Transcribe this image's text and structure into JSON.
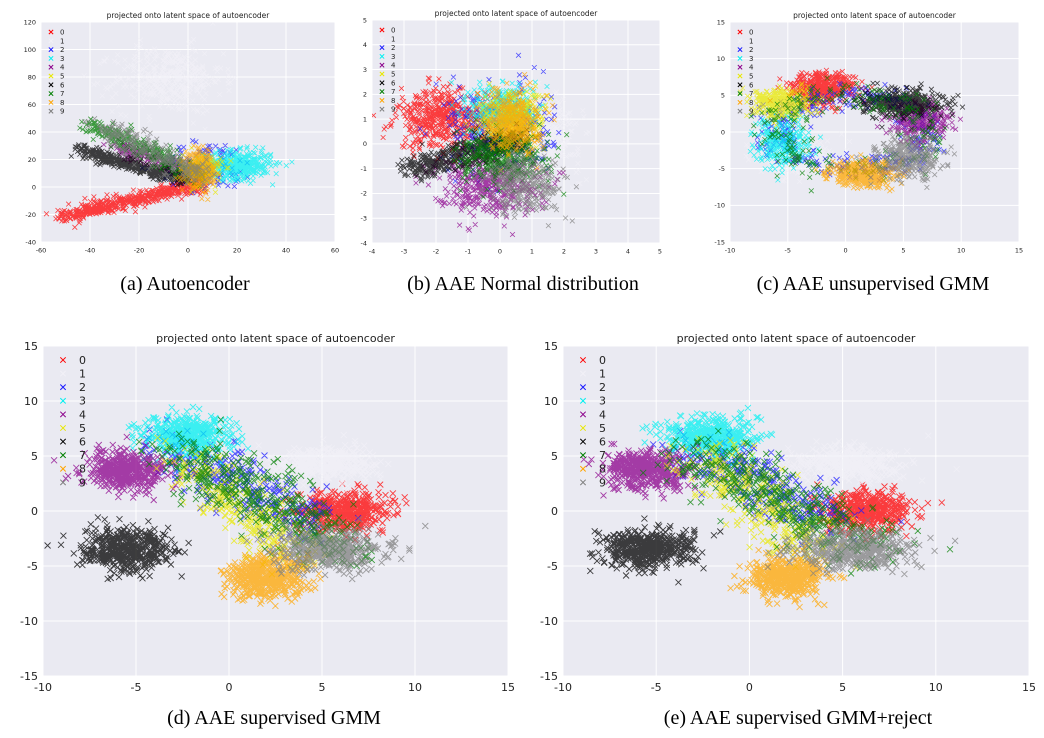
{
  "figure": {
    "legend_labels": [
      "0",
      "1",
      "2",
      "3",
      "4",
      "5",
      "6",
      "7",
      "8",
      "9"
    ],
    "class_colors": [
      "#ff0000",
      "#f2f0f7",
      "#1a1aff",
      "#00f0f0",
      "#8b008b",
      "#e8e800",
      "#000000",
      "#007f00",
      "#ffa500",
      "#7f7f7f"
    ],
    "background_color": "#eaeaf2"
  },
  "chart_data": [
    {
      "type": "scatter",
      "id": "a",
      "title": "projected onto latent space of autoencoder",
      "caption": "(a) Autoencoder",
      "xlim": [
        -60,
        60
      ],
      "ylim": [
        -40,
        120
      ],
      "xticks": [
        -60,
        -40,
        -20,
        0,
        20,
        40,
        60
      ],
      "yticks": [
        -40,
        -20,
        0,
        20,
        40,
        60,
        80,
        100,
        120
      ],
      "grid": true,
      "legend_position": "top-left",
      "series": [
        {
          "name": "0",
          "cluster": {
            "kind": "line",
            "from": [
              -52,
              -22
            ],
            "to": [
              5,
              2
            ],
            "spread": 2.5,
            "n": 520
          }
        },
        {
          "name": "1",
          "cluster": {
            "kind": "blob",
            "center": [
              -8,
              78
            ],
            "spread": [
              11,
              12
            ],
            "n": 380
          }
        },
        {
          "name": "2",
          "cluster": {
            "kind": "blob",
            "center": [
              8,
              15
            ],
            "spread": [
              10,
              9
            ],
            "n": 120
          }
        },
        {
          "name": "3",
          "cluster": {
            "kind": "blob",
            "center": [
              20,
              16
            ],
            "spread": [
              7,
              5
            ],
            "n": 420
          }
        },
        {
          "name": "4",
          "cluster": {
            "kind": "line",
            "from": [
              -30,
              30
            ],
            "to": [
              5,
              8
            ],
            "spread": 2.5,
            "n": 200
          }
        },
        {
          "name": "5",
          "cluster": {
            "kind": "blob",
            "center": [
              6,
              12
            ],
            "spread": [
              4,
              6
            ],
            "n": 140
          }
        },
        {
          "name": "6",
          "cluster": {
            "kind": "line",
            "from": [
              -45,
              27
            ],
            "to": [
              0,
              5
            ],
            "spread": 2.2,
            "n": 460
          }
        },
        {
          "name": "7",
          "cluster": {
            "kind": "line",
            "from": [
              -40,
              46
            ],
            "to": [
              5,
              8
            ],
            "spread": 3,
            "n": 320
          }
        },
        {
          "name": "8",
          "cluster": {
            "kind": "blob",
            "center": [
              5,
              12
            ],
            "spread": [
              3,
              6
            ],
            "n": 380
          }
        },
        {
          "name": "9",
          "cluster": {
            "kind": "line",
            "from": [
              -35,
              44
            ],
            "to": [
              5,
              8
            ],
            "spread": 4,
            "n": 260
          }
        }
      ]
    },
    {
      "type": "scatter",
      "id": "b",
      "title": "projected onto latent space of autoencoder",
      "caption": "(b) AAE Normal distribution",
      "xlim": [
        -4,
        5
      ],
      "ylim": [
        -4,
        5
      ],
      "xticks": [
        -4,
        -3,
        -2,
        -1,
        0,
        1,
        2,
        3,
        4,
        5
      ],
      "yticks": [
        -4,
        -3,
        -2,
        -1,
        0,
        1,
        2,
        3,
        4,
        5
      ],
      "grid": true,
      "legend_position": "top-left",
      "series": [
        {
          "name": "0",
          "cluster": {
            "kind": "blob",
            "center": [
              -1.8,
              1.0
            ],
            "spread": [
              0.7,
              0.6
            ],
            "n": 500
          }
        },
        {
          "name": "1",
          "cluster": {
            "kind": "blob",
            "center": [
              1.3,
              0.3
            ],
            "spread": [
              0.6,
              0.7
            ],
            "n": 380
          }
        },
        {
          "name": "2",
          "cluster": {
            "kind": "blob",
            "center": [
              0.0,
              0.6
            ],
            "spread": [
              0.8,
              0.9
            ],
            "n": 300
          }
        },
        {
          "name": "3",
          "cluster": {
            "kind": "blob",
            "center": [
              0.1,
              1.4
            ],
            "spread": [
              0.5,
              0.5
            ],
            "n": 360
          }
        },
        {
          "name": "4",
          "cluster": {
            "kind": "blob",
            "center": [
              -0.4,
              -1.6
            ],
            "spread": [
              0.8,
              0.6
            ],
            "n": 420
          }
        },
        {
          "name": "5",
          "cluster": {
            "kind": "blob",
            "center": [
              0.4,
              0.9
            ],
            "spread": [
              0.5,
              0.6
            ],
            "n": 300
          }
        },
        {
          "name": "6",
          "cluster": {
            "kind": "line",
            "from": [
              -2.8,
              -1.0
            ],
            "to": [
              0.6,
              0.2
            ],
            "spread": 0.25,
            "n": 460
          }
        },
        {
          "name": "7",
          "cluster": {
            "kind": "blob",
            "center": [
              0.1,
              -0.6
            ],
            "spread": [
              0.7,
              0.5
            ],
            "n": 360
          }
        },
        {
          "name": "8",
          "cluster": {
            "kind": "blob",
            "center": [
              0.4,
              0.9
            ],
            "spread": [
              0.4,
              0.6
            ],
            "n": 420
          }
        },
        {
          "name": "9",
          "cluster": {
            "kind": "blob",
            "center": [
              0.8,
              -1.6
            ],
            "spread": [
              0.6,
              0.6
            ],
            "n": 320
          }
        }
      ]
    },
    {
      "type": "scatter",
      "id": "c",
      "title": "projected onto latent space of autoencoder",
      "caption": "(c) AAE unsupervised GMM",
      "xlim": [
        -10,
        15
      ],
      "ylim": [
        -15,
        15
      ],
      "xticks": [
        -10,
        -5,
        0,
        5,
        10,
        15
      ],
      "yticks": [
        -15,
        -10,
        -5,
        0,
        5,
        10,
        15
      ],
      "grid": true,
      "legend_position": "top-left",
      "series": [
        {
          "name": "0",
          "cluster": {
            "kind": "blob",
            "center": [
              -2,
              6
            ],
            "spread": [
              1.4,
              1.1
            ],
            "n": 420
          }
        },
        {
          "name": "1",
          "cluster": {
            "kind": "blob",
            "center": [
              -4.5,
              -3.5
            ],
            "spread": [
              1.5,
              1.3
            ],
            "n": 300
          }
        },
        {
          "name": "2",
          "cluster": {
            "kind": "ring",
            "center": [
              0.5,
              0.0
            ],
            "radius": [
              6.5,
              5.0
            ],
            "spread": 0.9,
            "n": 360
          }
        },
        {
          "name": "3",
          "cluster": {
            "kind": "blob",
            "center": [
              -5.5,
              -1.5
            ],
            "spread": [
              1.2,
              1.8
            ],
            "n": 260
          }
        },
        {
          "name": "4",
          "cluster": {
            "kind": "blob",
            "center": [
              6.5,
              1.5
            ],
            "spread": [
              1.2,
              1.2
            ],
            "n": 300
          }
        },
        {
          "name": "5",
          "cluster": {
            "kind": "blob",
            "center": [
              -5.5,
              4.0
            ],
            "spread": [
              1.2,
              1.0
            ],
            "n": 320
          }
        },
        {
          "name": "6",
          "cluster": {
            "kind": "blob",
            "center": [
              5.0,
              4.0
            ],
            "spread": [
              1.7,
              0.9
            ],
            "n": 440
          }
        },
        {
          "name": "7",
          "cluster": {
            "kind": "ring",
            "center": [
              0.5,
              0.0
            ],
            "radius": [
              6.5,
              5.0
            ],
            "spread": 1.2,
            "n": 260
          }
        },
        {
          "name": "8",
          "cluster": {
            "kind": "blob",
            "center": [
              1.5,
              -5.8
            ],
            "spread": [
              1.4,
              0.9
            ],
            "n": 420
          }
        },
        {
          "name": "9",
          "cluster": {
            "kind": "blob",
            "center": [
              5.5,
              -3.5
            ],
            "spread": [
              1.3,
              1.3
            ],
            "n": 360
          }
        }
      ]
    },
    {
      "type": "scatter",
      "id": "d",
      "title": "projected onto latent space of autoencoder",
      "caption": "(d) AAE supervised GMM",
      "xlim": [
        -10,
        15
      ],
      "ylim": [
        -15,
        15
      ],
      "xticks": [
        -10,
        -5,
        0,
        5,
        10,
        15
      ],
      "yticks": [
        -15,
        -10,
        -5,
        0,
        5,
        10,
        15
      ],
      "grid": true,
      "legend_position": "top-left",
      "series": [
        {
          "name": "0",
          "cluster": {
            "kind": "blob",
            "center": [
              6.2,
              0.0
            ],
            "spread": [
              1.2,
              0.9
            ],
            "n": 480
          }
        },
        {
          "name": "1",
          "cluster": {
            "kind": "blob",
            "center": [
              5.2,
              4.3
            ],
            "spread": [
              1.4,
              0.8
            ],
            "n": 380
          }
        },
        {
          "name": "2",
          "cluster": {
            "kind": "line",
            "from": [
              -3.5,
              6.0
            ],
            "to": [
              4.5,
              -1.0
            ],
            "spread": 1.1,
            "n": 280
          }
        },
        {
          "name": "3",
          "cluster": {
            "kind": "blob",
            "center": [
              -2.2,
              6.8
            ],
            "spread": [
              1.2,
              0.9
            ],
            "n": 460
          }
        },
        {
          "name": "4",
          "cluster": {
            "kind": "blob",
            "center": [
              -5.5,
              3.7
            ],
            "spread": [
              1.1,
              0.9
            ],
            "n": 480
          }
        },
        {
          "name": "5",
          "cluster": {
            "kind": "line",
            "from": [
              -2.5,
              5.0
            ],
            "to": [
              3.5,
              -4.0
            ],
            "spread": 1.0,
            "n": 280
          }
        },
        {
          "name": "6",
          "cluster": {
            "kind": "blob",
            "center": [
              -5.5,
              -3.5
            ],
            "spread": [
              1.2,
              0.9
            ],
            "n": 520
          }
        },
        {
          "name": "7",
          "cluster": {
            "kind": "line",
            "from": [
              -3.0,
              5.5
            ],
            "to": [
              6.5,
              -3.5
            ],
            "spread": 1.2,
            "n": 420
          }
        },
        {
          "name": "8",
          "cluster": {
            "kind": "blob",
            "center": [
              2.0,
              -6.0
            ],
            "spread": [
              1.1,
              1.0
            ],
            "n": 500
          }
        },
        {
          "name": "9",
          "cluster": {
            "kind": "blob",
            "center": [
              5.5,
              -3.5
            ],
            "spread": [
              1.5,
              0.9
            ],
            "n": 460
          }
        }
      ]
    },
    {
      "type": "scatter",
      "id": "e",
      "title": "projected onto latent space of autoencoder",
      "caption": "(e) AAE supervised GMM+reject",
      "xlim": [
        -10,
        15
      ],
      "ylim": [
        -15,
        15
      ],
      "xticks": [
        -10,
        -5,
        0,
        5,
        10,
        15
      ],
      "yticks": [
        -15,
        -10,
        -5,
        0,
        5,
        10,
        15
      ],
      "grid": true,
      "legend_position": "top-left",
      "series": [
        {
          "name": "0",
          "cluster": {
            "kind": "blob",
            "center": [
              6.2,
              0.0
            ],
            "spread": [
              1.2,
              0.9
            ],
            "n": 480
          }
        },
        {
          "name": "1",
          "cluster": {
            "kind": "blob",
            "center": [
              5.2,
              4.3
            ],
            "spread": [
              1.4,
              0.8
            ],
            "n": 380
          }
        },
        {
          "name": "2",
          "cluster": {
            "kind": "line",
            "from": [
              -3.5,
              6.0
            ],
            "to": [
              4.5,
              -1.0
            ],
            "spread": 1.1,
            "n": 280
          }
        },
        {
          "name": "3",
          "cluster": {
            "kind": "blob",
            "center": [
              -2.2,
              6.8
            ],
            "spread": [
              1.2,
              0.9
            ],
            "n": 460
          }
        },
        {
          "name": "4",
          "cluster": {
            "kind": "blob",
            "center": [
              -5.5,
              3.7
            ],
            "spread": [
              1.1,
              0.9
            ],
            "n": 480
          }
        },
        {
          "name": "5",
          "cluster": {
            "kind": "line",
            "from": [
              -2.5,
              5.0
            ],
            "to": [
              3.5,
              -4.0
            ],
            "spread": 1.0,
            "n": 280
          }
        },
        {
          "name": "6",
          "cluster": {
            "kind": "blob",
            "center": [
              -5.5,
              -3.5
            ],
            "spread": [
              1.2,
              0.9
            ],
            "n": 520
          }
        },
        {
          "name": "7",
          "cluster": {
            "kind": "line",
            "from": [
              -3.0,
              5.5
            ],
            "to": [
              6.5,
              -3.5
            ],
            "spread": 1.2,
            "n": 420
          }
        },
        {
          "name": "8",
          "cluster": {
            "kind": "blob",
            "center": [
              2.0,
              -6.0
            ],
            "spread": [
              1.0,
              0.9
            ],
            "n": 500
          }
        },
        {
          "name": "9",
          "cluster": {
            "kind": "blob",
            "center": [
              5.5,
              -3.5
            ],
            "spread": [
              1.5,
              0.9
            ],
            "n": 460
          }
        }
      ]
    }
  ]
}
